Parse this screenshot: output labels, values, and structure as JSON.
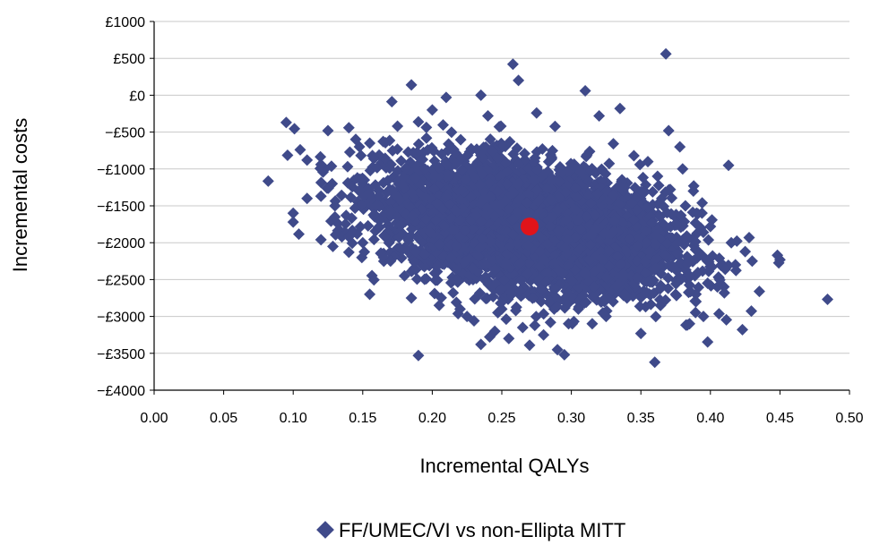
{
  "chart_data": {
    "type": "scatter",
    "title": "",
    "xlabel": "Incremental QALYs",
    "ylabel": "Incremental costs",
    "xlim": [
      0.0,
      0.5
    ],
    "ylim": [
      -4000,
      1000
    ],
    "x_ticks": [
      0.0,
      0.05,
      0.1,
      0.15,
      0.2,
      0.25,
      0.3,
      0.35,
      0.4,
      0.45,
      0.5
    ],
    "x_tick_labels": [
      "0.00",
      "0.05",
      "0.10",
      "0.15",
      "0.20",
      "0.25",
      "0.30",
      "0.35",
      "0.40",
      "0.45",
      "0.50"
    ],
    "y_ticks": [
      1000,
      500,
      0,
      -500,
      -1000,
      -1500,
      -2000,
      -2500,
      -3000,
      -3500,
      -4000
    ],
    "y_tick_labels": [
      "£1000",
      "£500",
      "£0",
      "−£500",
      "−£1000",
      "−£1500",
      "−£2000",
      "−£2500",
      "−£3000",
      "−£3500",
      "−£4000"
    ],
    "grid": "horizontal",
    "legend_position": "bottom",
    "colors": {
      "series": "#3f4a8a",
      "mean": "#e0141a",
      "grid": "#c8c8c8",
      "axis": "#000000"
    },
    "series": [
      {
        "name": "FF/UMEC/VI vs non-Ellipta MITT",
        "marker": "diamond",
        "cloud": {
          "center": [
            0.27,
            -1780
          ],
          "sd": [
            0.05,
            420
          ],
          "correlation": -0.35,
          "approx_count": 5000
        },
        "outliers": [
          [
            0.095,
            -370
          ],
          [
            0.1,
            -1600
          ],
          [
            0.1,
            -1720
          ],
          [
            0.105,
            -740
          ],
          [
            0.11,
            -880
          ],
          [
            0.11,
            -1400
          ],
          [
            0.12,
            -940
          ],
          [
            0.12,
            -1370
          ],
          [
            0.12,
            -1960
          ],
          [
            0.125,
            -480
          ],
          [
            0.128,
            -1200
          ],
          [
            0.13,
            -1500
          ],
          [
            0.13,
            -1650
          ],
          [
            0.135,
            -1920
          ],
          [
            0.14,
            -440
          ],
          [
            0.14,
            -1920
          ],
          [
            0.14,
            -2130
          ],
          [
            0.145,
            -600
          ],
          [
            0.15,
            -2000
          ],
          [
            0.155,
            -650
          ],
          [
            0.155,
            -2700
          ],
          [
            0.16,
            -1500
          ],
          [
            0.165,
            -2200
          ],
          [
            0.17,
            -2250
          ],
          [
            0.175,
            -420
          ],
          [
            0.18,
            -2450
          ],
          [
            0.185,
            140
          ],
          [
            0.185,
            -2750
          ],
          [
            0.19,
            -360
          ],
          [
            0.19,
            -3530
          ],
          [
            0.2,
            -200
          ],
          [
            0.205,
            -2850
          ],
          [
            0.21,
            -30
          ],
          [
            0.215,
            -2680
          ],
          [
            0.22,
            -2900
          ],
          [
            0.225,
            -3000
          ],
          [
            0.23,
            -3060
          ],
          [
            0.235,
            0
          ],
          [
            0.235,
            -3380
          ],
          [
            0.24,
            -280
          ],
          [
            0.245,
            -3200
          ],
          [
            0.25,
            -2900
          ],
          [
            0.255,
            -3300
          ],
          [
            0.258,
            420
          ],
          [
            0.262,
            200
          ],
          [
            0.265,
            -3150
          ],
          [
            0.27,
            -3390
          ],
          [
            0.275,
            -240
          ],
          [
            0.28,
            -3250
          ],
          [
            0.285,
            -3080
          ],
          [
            0.29,
            -3450
          ],
          [
            0.295,
            -3520
          ],
          [
            0.298,
            -3100
          ],
          [
            0.305,
            -2900
          ],
          [
            0.31,
            60
          ],
          [
            0.315,
            -3100
          ],
          [
            0.32,
            -280
          ],
          [
            0.325,
            -3000
          ],
          [
            0.33,
            -2800
          ],
          [
            0.335,
            -180
          ],
          [
            0.34,
            -2750
          ],
          [
            0.345,
            -820
          ],
          [
            0.35,
            -3230
          ],
          [
            0.355,
            -900
          ],
          [
            0.36,
            -3620
          ],
          [
            0.362,
            -1100
          ],
          [
            0.365,
            -1400
          ],
          [
            0.368,
            560
          ],
          [
            0.37,
            -480
          ],
          [
            0.375,
            -2700
          ],
          [
            0.378,
            -700
          ],
          [
            0.38,
            -1000
          ],
          [
            0.382,
            -1500
          ],
          [
            0.385,
            -3100
          ],
          [
            0.388,
            -1230
          ],
          [
            0.39,
            -1600
          ],
          [
            0.395,
            -3000
          ],
          [
            0.398,
            -2550
          ],
          [
            0.4,
            -1780
          ],
          [
            0.405,
            -2600
          ],
          [
            0.41,
            -2680
          ],
          [
            0.413,
            -950
          ],
          [
            0.415,
            -2000
          ],
          [
            0.418,
            -2300
          ],
          [
            0.423,
            -3180
          ],
          [
            0.425,
            -2120
          ],
          [
            0.43,
            -2250
          ],
          [
            0.45,
            -2230
          ]
        ]
      }
    ],
    "mean_point": {
      "x": 0.27,
      "y": -1780
    }
  }
}
